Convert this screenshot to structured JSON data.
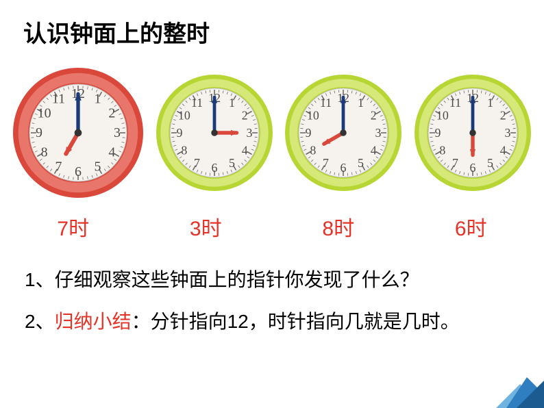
{
  "title": "认识钟面上的整时",
  "clocks": [
    {
      "label": "7时",
      "ring_outer": "#d9483b",
      "ring_inner": "#e9766a",
      "size": 190,
      "ring_thickness": 22,
      "face": "#f6f3ee",
      "hour": 7,
      "minute": 0,
      "hour_hand_color": "#d9483b",
      "minute_hand_color": "#1a3a7a",
      "numeral_color": "#4a4a4a",
      "tick_color": "#6b6b6b"
    },
    {
      "label": "3时",
      "ring_outer": "#b7d633",
      "ring_inner": "#d5e878",
      "size": 170,
      "ring_thickness": 18,
      "face": "#f6f3ee",
      "hour": 3,
      "minute": 0,
      "hour_hand_color": "#d9483b",
      "minute_hand_color": "#1a3a7a",
      "numeral_color": "#4a4a4a",
      "tick_color": "#6b6b6b"
    },
    {
      "label": "8时",
      "ring_outer": "#b7d633",
      "ring_inner": "#d5e878",
      "size": 170,
      "ring_thickness": 18,
      "face": "#f6f3ee",
      "hour": 8,
      "minute": 0,
      "hour_hand_color": "#d9483b",
      "minute_hand_color": "#1a3a7a",
      "numeral_color": "#4a4a4a",
      "tick_color": "#6b6b6b"
    },
    {
      "label": "6时",
      "ring_outer": "#b7d633",
      "ring_inner": "#d5e878",
      "size": 170,
      "ring_thickness": 18,
      "face": "#f6f3ee",
      "hour": 6,
      "minute": 0,
      "hour_hand_color": "#d9483b",
      "minute_hand_color": "#1a3a7a",
      "numeral_color": "#4a4a4a",
      "tick_color": "#6b6b6b"
    }
  ],
  "question_prefix": "1、",
  "question_text": "仔细观察这些钟面上的指针你发现了什么？",
  "summary_prefix": "2、",
  "summary_red": "归纳小结",
  "summary_text": "：分针指向12，时针指向几就是几时。",
  "deco_colors": {
    "dark": "#1b5b8f",
    "mid": "#2f7ebf",
    "light": "#6fb3e0"
  }
}
